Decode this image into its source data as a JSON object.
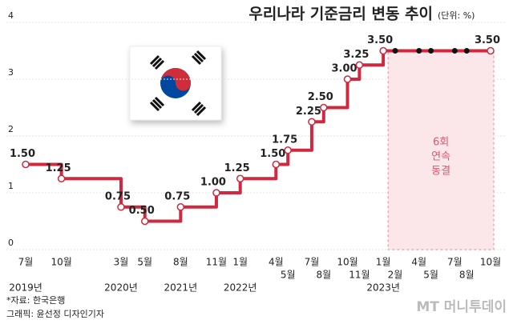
{
  "chart_data": {
    "type": "step",
    "title": "우리나라 기준금리 변동 추이",
    "unit": "(단위: %)",
    "categories": [
      "7월",
      "10월",
      "3월",
      "5월",
      "8월",
      "11월",
      "1월",
      "4월",
      "5월",
      "7월",
      "8월",
      "10월",
      "11월",
      "1월",
      "2월",
      "4월",
      "5월",
      "7월",
      "8월",
      "10월"
    ],
    "year_labels": [
      "2019년",
      null,
      "2020년",
      null,
      "2021년",
      null,
      "2022년",
      null,
      null,
      null,
      null,
      null,
      null,
      "2023년",
      null,
      null,
      null,
      null,
      null,
      null
    ],
    "values": [
      1.5,
      1.25,
      0.75,
      0.5,
      0.75,
      1.0,
      1.25,
      1.5,
      1.75,
      2.25,
      2.5,
      3.0,
      3.25,
      3.5,
      3.5,
      3.5,
      3.5,
      3.5,
      3.5,
      3.5
    ],
    "value_labels": [
      "1.50",
      "1.25",
      "0.75",
      "0.50",
      "0.75",
      "1.00",
      "1.25",
      "1.50",
      "1.75",
      "2.25",
      "2.50",
      "3.00",
      "3.25",
      "3.50",
      null,
      null,
      null,
      null,
      null,
      "3.50"
    ],
    "color": "#d0283e",
    "ylim": [
      0,
      4
    ],
    "yticks": [
      0,
      1,
      2,
      3,
      4
    ],
    "grid": true,
    "annotation": [
      "6회",
      "연속",
      "동결"
    ]
  },
  "source": "*자료: 한국은행",
  "credit": "그래픽: 윤선정 디자인기자",
  "watermark": "MT 머니투데이"
}
